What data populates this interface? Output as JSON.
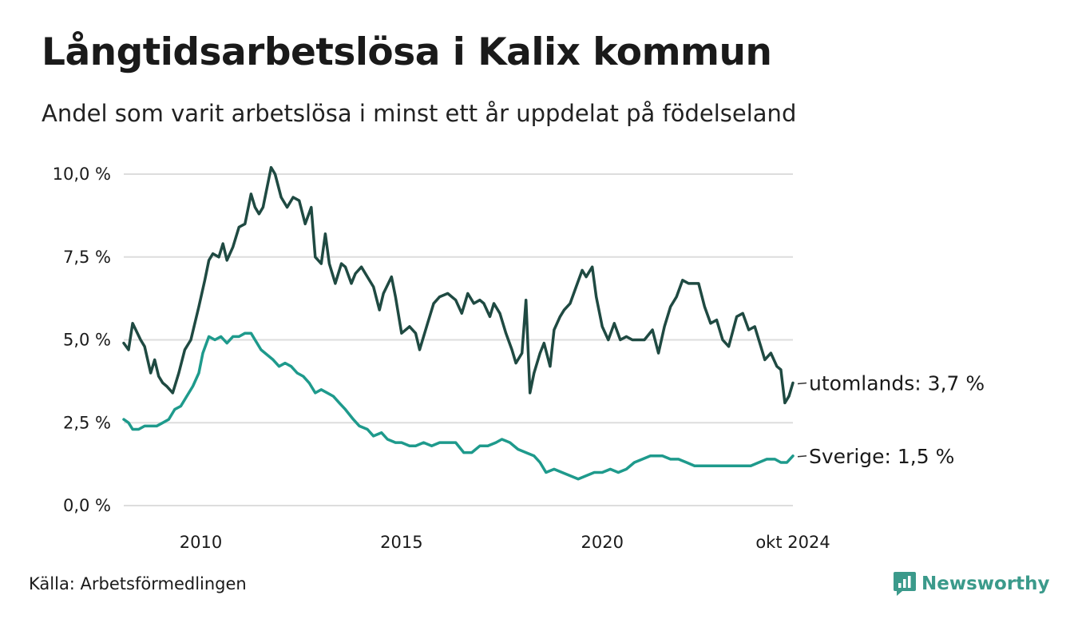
{
  "title": "Långtidsarbetslösa i Kalix kommun",
  "subtitle": "Andel som varit arbetslösa i minst ett år uppdelat på födelseland",
  "source": "Källa: Arbetsförmedlingen",
  "brand": "Newsworthy",
  "colors": {
    "utomlands": "#1f4a42",
    "sverige": "#1e9a8c",
    "grid": "#dddddd",
    "brand": "#3b9a8b"
  },
  "chart_data": {
    "type": "line",
    "title": "Långtidsarbetslösa i Kalix kommun",
    "ylim": [
      0,
      10
    ],
    "xlim": [
      2008.08,
      2024.75
    ],
    "y_ticks": [
      {
        "value": 0,
        "label": "0,0 %"
      },
      {
        "value": 2.5,
        "label": "2,5 %"
      },
      {
        "value": 5,
        "label": "5,0 %"
      },
      {
        "value": 7.5,
        "label": "7,5 %"
      },
      {
        "value": 10,
        "label": "10,0 %"
      }
    ],
    "x_ticks": [
      {
        "value": 2010,
        "label": "2010"
      },
      {
        "value": 2015,
        "label": "2015"
      },
      {
        "value": 2020,
        "label": "2020"
      },
      {
        "value": 2024.75,
        "label": "okt 2024"
      }
    ],
    "grid": true,
    "series": [
      {
        "name": "utomlands",
        "end_label": "utomlands: 3,7 %",
        "x": [
          2008.08,
          2008.2,
          2008.3,
          2008.5,
          2008.6,
          2008.75,
          2008.85,
          2008.95,
          2009.05,
          2009.15,
          2009.3,
          2009.45,
          2009.6,
          2009.75,
          2009.95,
          2010.1,
          2010.2,
          2010.3,
          2010.45,
          2010.55,
          2010.65,
          2010.8,
          2010.95,
          2011.1,
          2011.25,
          2011.35,
          2011.45,
          2011.55,
          2011.75,
          2011.85,
          2012.0,
          2012.15,
          2012.3,
          2012.45,
          2012.6,
          2012.75,
          2012.85,
          2013.0,
          2013.1,
          2013.2,
          2013.35,
          2013.5,
          2013.6,
          2013.75,
          2013.85,
          2014.0,
          2014.15,
          2014.3,
          2014.45,
          2014.55,
          2014.75,
          2014.85,
          2015.0,
          2015.2,
          2015.35,
          2015.45,
          2015.65,
          2015.8,
          2015.95,
          2016.15,
          2016.35,
          2016.5,
          2016.65,
          2016.8,
          2016.95,
          2017.05,
          2017.2,
          2017.3,
          2017.45,
          2017.6,
          2017.75,
          2017.85,
          2018.0,
          2018.1,
          2018.2,
          2018.3,
          2018.45,
          2018.55,
          2018.7,
          2018.8,
          2018.95,
          2019.05,
          2019.2,
          2019.35,
          2019.5,
          2019.6,
          2019.75,
          2019.85,
          2020.0,
          2020.15,
          2020.3,
          2020.45,
          2020.6,
          2020.75,
          2020.9,
          2021.05,
          2021.25,
          2021.4,
          2021.55,
          2021.7,
          2021.85,
          2022.0,
          2022.15,
          2022.25,
          2022.4,
          2022.55,
          2022.7,
          2022.85,
          2023.0,
          2023.15,
          2023.35,
          2023.5,
          2023.65,
          2023.8,
          2023.95,
          2024.05,
          2024.2,
          2024.35,
          2024.45,
          2024.55,
          2024.65,
          2024.75
        ],
        "values": [
          4.9,
          4.7,
          5.5,
          5.0,
          4.8,
          4.0,
          4.4,
          3.9,
          3.7,
          3.6,
          3.4,
          4.0,
          4.7,
          5.0,
          6.0,
          6.8,
          7.4,
          7.6,
          7.5,
          7.9,
          7.4,
          7.8,
          8.4,
          8.5,
          9.4,
          9.0,
          8.8,
          9.0,
          10.2,
          10.0,
          9.3,
          9.0,
          9.3,
          9.2,
          8.5,
          9.0,
          7.5,
          7.3,
          8.2,
          7.3,
          6.7,
          7.3,
          7.2,
          6.7,
          7.0,
          7.2,
          6.9,
          6.6,
          5.9,
          6.4,
          6.9,
          6.3,
          5.2,
          5.4,
          5.2,
          4.7,
          5.5,
          6.1,
          6.3,
          6.4,
          6.2,
          5.8,
          6.4,
          6.1,
          6.2,
          6.1,
          5.7,
          6.1,
          5.8,
          5.2,
          4.7,
          4.3,
          4.6,
          6.2,
          3.4,
          4.0,
          4.6,
          4.9,
          4.2,
          5.3,
          5.7,
          5.9,
          6.1,
          6.6,
          7.1,
          6.9,
          7.2,
          6.3,
          5.4,
          5.0,
          5.5,
          5.0,
          5.1,
          5.0,
          5.0,
          5.0,
          5.3,
          4.6,
          5.4,
          6.0,
          6.3,
          6.8,
          6.7,
          6.7,
          6.7,
          6.0,
          5.5,
          5.6,
          5.0,
          4.8,
          5.7,
          5.8,
          5.3,
          5.4,
          4.8,
          4.4,
          4.6,
          4.2,
          4.1,
          3.1,
          3.3,
          3.7
        ]
      },
      {
        "name": "sverige",
        "end_label": "Sverige: 1,5 %",
        "x": [
          2008.08,
          2008.2,
          2008.3,
          2008.45,
          2008.6,
          2008.75,
          2008.9,
          2009.05,
          2009.2,
          2009.35,
          2009.5,
          2009.65,
          2009.8,
          2009.95,
          2010.05,
          2010.2,
          2010.35,
          2010.5,
          2010.65,
          2010.8,
          2010.95,
          2011.1,
          2011.25,
          2011.35,
          2011.5,
          2011.6,
          2011.8,
          2011.95,
          2012.1,
          2012.25,
          2012.4,
          2012.55,
          2012.7,
          2012.85,
          2013.0,
          2013.15,
          2013.3,
          2013.45,
          2013.6,
          2013.8,
          2013.95,
          2014.15,
          2014.3,
          2014.5,
          2014.65,
          2014.85,
          2015.0,
          2015.2,
          2015.35,
          2015.55,
          2015.75,
          2015.95,
          2016.15,
          2016.35,
          2016.55,
          2016.75,
          2016.95,
          2017.15,
          2017.35,
          2017.5,
          2017.7,
          2017.9,
          2018.1,
          2018.3,
          2018.45,
          2018.6,
          2018.8,
          2019.0,
          2019.2,
          2019.4,
          2019.6,
          2019.8,
          2020.0,
          2020.2,
          2020.4,
          2020.6,
          2020.8,
          2021.0,
          2021.2,
          2021.35,
          2021.5,
          2021.7,
          2021.9,
          2022.1,
          2022.3,
          2022.5,
          2022.7,
          2022.9,
          2023.1,
          2023.3,
          2023.5,
          2023.7,
          2023.9,
          2024.1,
          2024.3,
          2024.45,
          2024.6,
          2024.75
        ],
        "values": [
          2.6,
          2.5,
          2.3,
          2.3,
          2.4,
          2.4,
          2.4,
          2.5,
          2.6,
          2.9,
          3.0,
          3.3,
          3.6,
          4.0,
          4.6,
          5.1,
          5.0,
          5.1,
          4.9,
          5.1,
          5.1,
          5.2,
          5.2,
          5.0,
          4.7,
          4.6,
          4.4,
          4.2,
          4.3,
          4.2,
          4.0,
          3.9,
          3.7,
          3.4,
          3.5,
          3.4,
          3.3,
          3.1,
          2.9,
          2.6,
          2.4,
          2.3,
          2.1,
          2.2,
          2.0,
          1.9,
          1.9,
          1.8,
          1.8,
          1.9,
          1.8,
          1.9,
          1.9,
          1.9,
          1.6,
          1.6,
          1.8,
          1.8,
          1.9,
          2.0,
          1.9,
          1.7,
          1.6,
          1.5,
          1.3,
          1.0,
          1.1,
          1.0,
          0.9,
          0.8,
          0.9,
          1.0,
          1.0,
          1.1,
          1.0,
          1.1,
          1.3,
          1.4,
          1.5,
          1.5,
          1.5,
          1.4,
          1.4,
          1.3,
          1.2,
          1.2,
          1.2,
          1.2,
          1.2,
          1.2,
          1.2,
          1.2,
          1.3,
          1.4,
          1.4,
          1.3,
          1.3,
          1.5
        ]
      }
    ]
  }
}
